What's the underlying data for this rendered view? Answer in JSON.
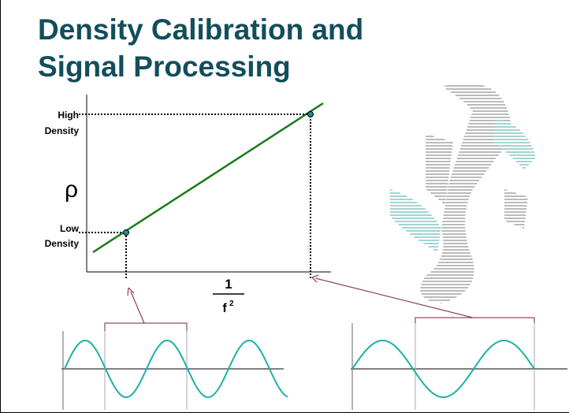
{
  "title_lines": [
    "Density Calibration and",
    "Signal Processing"
  ],
  "y_axis_symbol": "ρ",
  "high_label": [
    "High",
    "Density"
  ],
  "low_label": [
    "Low",
    "Density"
  ],
  "x_axis_label": {
    "numerator": "1",
    "denominator": "f",
    "exponent": "2"
  }
}
